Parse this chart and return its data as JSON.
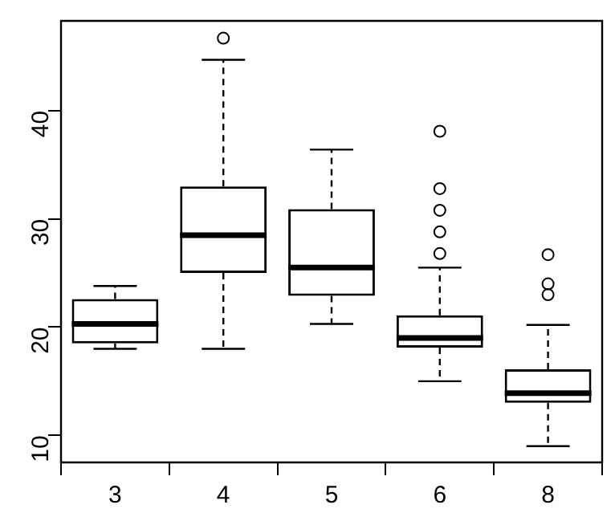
{
  "chart_data": {
    "type": "box",
    "categories": [
      "3",
      "4",
      "5",
      "6",
      "8"
    ],
    "boxes": [
      {
        "low": 18.0,
        "q1": 18.5,
        "median": 20.3,
        "q3": 22.6,
        "high": 23.8
      },
      {
        "low": 18.0,
        "q1": 25.0,
        "median": 28.5,
        "q3": 33.0,
        "high": 44.7,
        "outliers": [
          46.7
        ]
      },
      {
        "low": 20.3,
        "q1": 22.9,
        "median": 25.5,
        "q3": 30.9,
        "high": 36.4
      },
      {
        "low": 15.0,
        "q1": 18.1,
        "median": 19.0,
        "q3": 21.1,
        "high": 25.5,
        "outliers": [
          38.1,
          32.8,
          30.8,
          28.8,
          26.8
        ]
      },
      {
        "low": 9.0,
        "q1": 13.0,
        "median": 13.9,
        "q3": 16.1,
        "high": 20.2,
        "outliers": [
          26.7,
          24.0,
          23.0
        ]
      }
    ],
    "ylim": [
      7.5,
      48.3
    ],
    "yticks": [
      10,
      20,
      30,
      40
    ],
    "marker": "circle",
    "grid": false
  }
}
